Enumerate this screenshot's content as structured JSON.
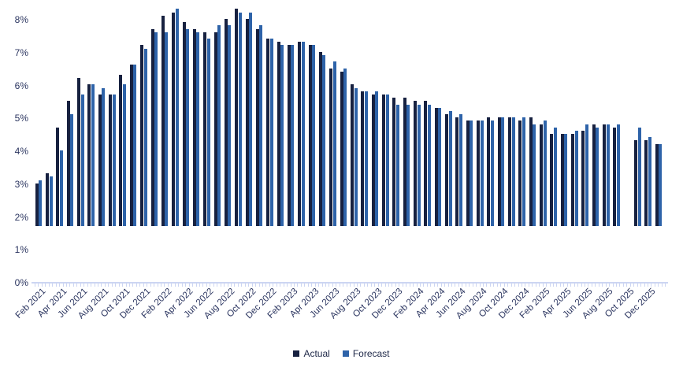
{
  "chart_data": {
    "type": "bar",
    "title": "",
    "xlabel": "",
    "ylabel": "",
    "ylim": [
      0,
      8
    ],
    "ytick_step": 1,
    "ytick_suffix": "%",
    "grid": false,
    "legend_position": "bottom-center",
    "xtick_label_every": 2,
    "categories": [
      "Feb 2021",
      "Mar 2021",
      "Apr 2021",
      "May 2021",
      "Jun 2021",
      "Jul 2021",
      "Aug 2021",
      "Sep 2021",
      "Oct 2021",
      "Nov 2021",
      "Dec 2021",
      "Jan 2022",
      "Feb 2022",
      "Mar 2022",
      "Apr 2022",
      "May 2022",
      "Jun 2022",
      "Jul 2022",
      "Aug 2022",
      "Sep 2022",
      "Oct 2022",
      "Nov 2022",
      "Dec 2022",
      "Jan 2023",
      "Feb 2023",
      "Mar 2023",
      "Apr 2023",
      "May 2023",
      "Jun 2023",
      "Jul 2023",
      "Aug 2023",
      "Sep 2023",
      "Oct 2023",
      "Nov 2023",
      "Dec 2023",
      "Jan 2024",
      "Feb 2024",
      "Mar 2024",
      "Apr 2024",
      "May 2024",
      "Jun 2024",
      "Jul 2024",
      "Aug 2024",
      "Sep 2024",
      "Oct 2024",
      "Nov 2024",
      "Dec 2024",
      "Jan 2025",
      "Feb 2025",
      "Mar 2025",
      "Apr 2025",
      "May 2025",
      "Jun 2025",
      "Jul 2025",
      "Aug 2025",
      "Sep 2025",
      "Oct 2025",
      "Nov 2025",
      "Dec 2025",
      "Jan 2026"
    ],
    "series": [
      {
        "name": "Actual",
        "color": "#172140",
        "values": [
          1.3,
          1.6,
          3.0,
          3.8,
          4.5,
          4.3,
          4.0,
          4.0,
          4.6,
          4.9,
          5.5,
          6.0,
          6.4,
          6.5,
          6.2,
          6.0,
          5.9,
          5.9,
          6.3,
          6.6,
          6.3,
          6.0,
          5.7,
          5.6,
          5.5,
          5.6,
          5.5,
          5.3,
          4.8,
          4.7,
          4.3,
          4.1,
          4.0,
          4.0,
          3.9,
          3.9,
          3.8,
          3.8,
          3.6,
          3.4,
          3.3,
          3.2,
          3.2,
          3.3,
          3.3,
          3.3,
          3.2,
          3.3,
          3.1,
          2.8,
          2.8,
          2.8,
          2.9,
          3.1,
          3.1,
          3.0,
          null,
          2.6,
          2.6,
          2.5
        ]
      },
      {
        "name": "Forecast",
        "color": "#2e63a9",
        "values": [
          1.4,
          1.5,
          2.3,
          3.4,
          4.0,
          4.3,
          4.2,
          4.0,
          4.3,
          4.9,
          5.4,
          5.9,
          5.9,
          6.6,
          6.0,
          5.9,
          5.7,
          6.1,
          6.1,
          6.5,
          6.5,
          6.1,
          5.7,
          5.5,
          5.5,
          5.6,
          5.5,
          5.2,
          5.0,
          4.8,
          4.2,
          4.1,
          4.1,
          4.0,
          3.7,
          3.7,
          3.7,
          3.7,
          3.6,
          3.5,
          3.4,
          3.2,
          3.2,
          3.2,
          3.3,
          3.3,
          3.3,
          3.1,
          3.2,
          3.0,
          2.8,
          2.9,
          3.1,
          3.0,
          3.1,
          3.1,
          null,
          3.0,
          2.7,
          2.5
        ]
      }
    ]
  },
  "legend": {
    "actual_label": "Actual",
    "forecast_label": "Forecast"
  },
  "colors": {
    "axis_line": "#ccd5f2",
    "tick": "#ccd5f2",
    "axis_text": "#2b3560"
  }
}
